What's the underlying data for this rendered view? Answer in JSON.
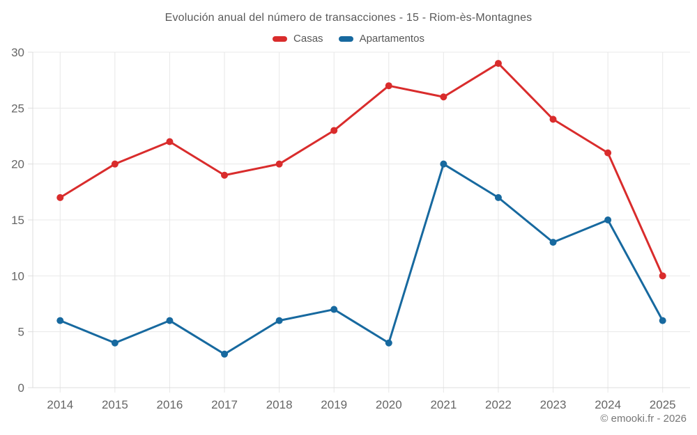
{
  "page": {
    "title": "Evolución anual del número de transacciones - 15 - Riom-ès-Montagnes",
    "footer": "© emooki.fr - 2026"
  },
  "legend": {
    "position": "top",
    "items": [
      {
        "label": "Casas",
        "color": "#d92c2c"
      },
      {
        "label": "Apartamentos",
        "color": "#17699f"
      }
    ]
  },
  "chart_data": {
    "type": "line",
    "title": "Evolución anual del número de transacciones - 15 - Riom-ès-Montagnes",
    "x": [
      "2014",
      "2015",
      "2016",
      "2017",
      "2018",
      "2019",
      "2020",
      "2021",
      "2022",
      "2023",
      "2024",
      "2025"
    ],
    "series": [
      {
        "name": "Casas",
        "color": "#d92c2c",
        "values": [
          17,
          20,
          22,
          19,
          20,
          23,
          27,
          26,
          29,
          24,
          21,
          10
        ]
      },
      {
        "name": "Apartamentos",
        "color": "#17699f",
        "values": [
          6,
          4,
          6,
          3,
          6,
          7,
          4,
          20,
          17,
          13,
          15,
          6
        ]
      }
    ],
    "xlabel": "",
    "ylabel": "",
    "ylim": [
      0,
      30
    ],
    "yticks": [
      0,
      5,
      10,
      15,
      20,
      25,
      30
    ],
    "grid": true,
    "legend_position": "top",
    "style": {
      "grid_color": "#e8e8e8",
      "axis_color": "#dcdcdc",
      "tick_label_color": "#666666",
      "marker_radius": 5,
      "line_width": 3
    }
  }
}
